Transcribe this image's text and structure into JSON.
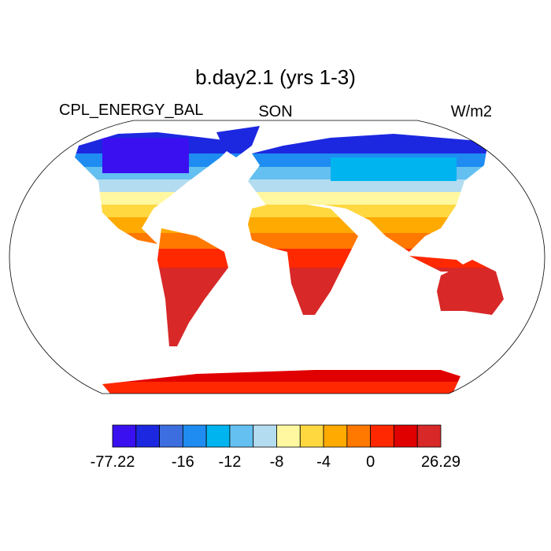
{
  "title": "b.day2.1 (yrs 1-3)",
  "left_label": "CPL_ENERGY_BAL",
  "center_label": "SON",
  "right_label": "W/m2",
  "colorbar": {
    "colors": [
      "#3a10f0",
      "#1c28e0",
      "#3c6ee0",
      "#1e8cf0",
      "#00b4f0",
      "#64c0f0",
      "#b4dcf0",
      "#fff8a0",
      "#ffd840",
      "#ffaa00",
      "#ff7800",
      "#ff2800",
      "#e00000",
      "#d82828"
    ],
    "levels": [
      -77.22,
      null,
      null,
      -16,
      null,
      -12,
      null,
      -8,
      null,
      -4,
      null,
      0,
      null,
      null,
      26.29
    ]
  }
}
